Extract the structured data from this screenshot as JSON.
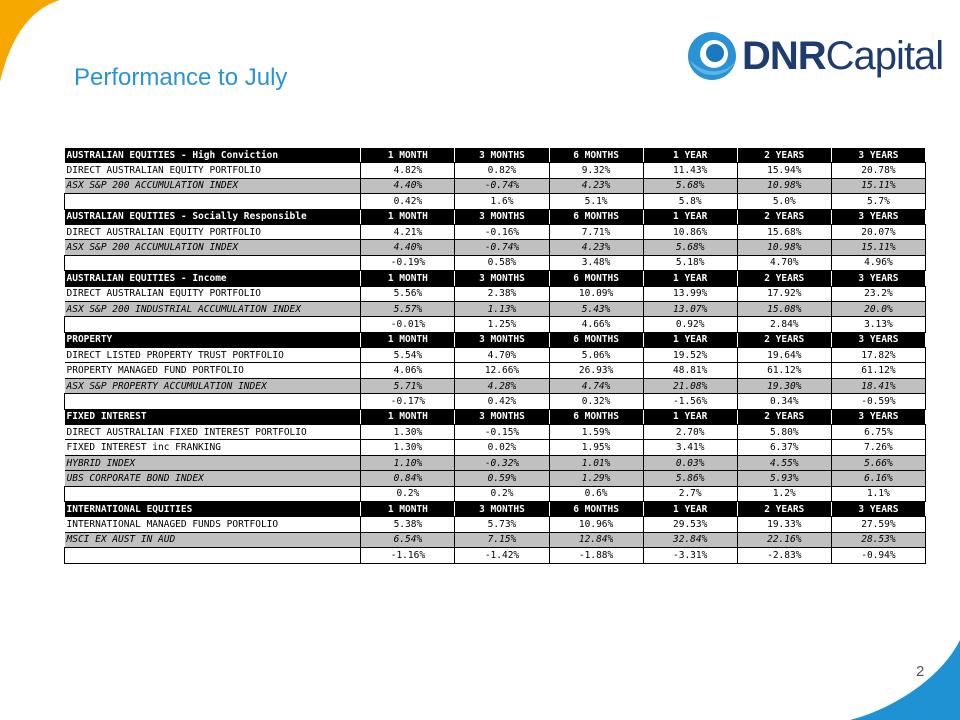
{
  "title": "Performance to July",
  "logo": {
    "bold": "DNR",
    "light": "Capital"
  },
  "page_number": "2",
  "colors": {
    "accent_blue": "#2a93d5",
    "logo_navy": "#1f3c70",
    "corner_yellow": "#f6a800",
    "header_bg": "#000000",
    "index_row_bg": "#c0c0c0"
  },
  "periods": [
    "1 MONTH",
    "3 MONTHS",
    "6 MONTHS",
    "1 YEAR",
    "2 YEARS",
    "3 YEARS"
  ],
  "sections": [
    {
      "name": "AUSTRALIAN EQUITIES - High Conviction",
      "rows": [
        {
          "type": "portfolio",
          "label": "DIRECT AUSTRALIAN EQUITY PORTFOLIO",
          "values": [
            "4.82%",
            "0.82%",
            "9.32%",
            "11.43%",
            "15.94%",
            "20.78%"
          ]
        },
        {
          "type": "index",
          "label": "ASX S&P 200 ACCUMULATION INDEX",
          "values": [
            "4.40%",
            "-0.74%",
            "4.23%",
            "5.68%",
            "10.98%",
            "15.11%"
          ]
        },
        {
          "type": "diff",
          "label": "",
          "values": [
            "0.42%",
            "1.6%",
            "5.1%",
            "5.8%",
            "5.0%",
            "5.7%"
          ]
        }
      ]
    },
    {
      "name": "AUSTRALIAN EQUITIES - Socially Responsible",
      "rows": [
        {
          "type": "portfolio",
          "label": "DIRECT AUSTRALIAN EQUITY PORTFOLIO",
          "values": [
            "4.21%",
            "-0.16%",
            "7.71%",
            "10.86%",
            "15.68%",
            "20.07%"
          ]
        },
        {
          "type": "index",
          "label": "ASX S&P 200 ACCUMULATION INDEX",
          "values": [
            "4.40%",
            "-0.74%",
            "4.23%",
            "5.68%",
            "10.98%",
            "15.11%"
          ]
        },
        {
          "type": "diff",
          "label": "",
          "values": [
            "-0.19%",
            "0.58%",
            "3.48%",
            "5.18%",
            "4.70%",
            "4.96%"
          ]
        }
      ]
    },
    {
      "name": "AUSTRALIAN EQUITIES - Income",
      "rows": [
        {
          "type": "portfolio",
          "label": "DIRECT AUSTRALIAN EQUITY PORTFOLIO",
          "values": [
            "5.56%",
            "2.38%",
            "10.09%",
            "13.99%",
            "17.92%",
            "23.2%"
          ]
        },
        {
          "type": "index",
          "label": "ASX S&P 200 INDUSTRIAL ACCUMULATION INDEX",
          "values": [
            "5.57%",
            "1.13%",
            "5.43%",
            "13.07%",
            "15.08%",
            "20.0%"
          ]
        },
        {
          "type": "diff",
          "label": "",
          "values": [
            "-0.01%",
            "1.25%",
            "4.66%",
            "0.92%",
            "2.84%",
            "3.13%"
          ]
        }
      ]
    },
    {
      "name": "PROPERTY",
      "rows": [
        {
          "type": "portfolio",
          "label": "DIRECT LISTED PROPERTY TRUST PORTFOLIO",
          "values": [
            "5.54%",
            "4.70%",
            "5.06%",
            "19.52%",
            "19.64%",
            "17.82%"
          ]
        },
        {
          "type": "portfolio",
          "label": "PROPERTY MANAGED FUND PORTFOLIO",
          "values": [
            "4.06%",
            "12.66%",
            "26.93%",
            "48.81%",
            "61.12%",
            "61.12%"
          ]
        },
        {
          "type": "index",
          "label": "ASX S&P PROPERTY ACCUMULATION INDEX",
          "values": [
            "5.71%",
            "4.28%",
            "4.74%",
            "21.08%",
            "19.30%",
            "18.41%"
          ]
        },
        {
          "type": "diff",
          "label": "",
          "values": [
            "-0.17%",
            "0.42%",
            "0.32%",
            "-1.56%",
            "0.34%",
            "-0.59%"
          ]
        }
      ]
    },
    {
      "name": "FIXED INTEREST",
      "rows": [
        {
          "type": "portfolio",
          "label": "DIRECT AUSTRALIAN FIXED INTEREST PORTFOLIO",
          "values": [
            "1.30%",
            "-0.15%",
            "1.59%",
            "2.70%",
            "5.80%",
            "6.75%"
          ]
        },
        {
          "type": "portfolio",
          "label": "FIXED INTEREST inc FRANKING",
          "values": [
            "1.30%",
            "0.02%",
            "1.95%",
            "3.41%",
            "6.37%",
            "7.26%"
          ]
        },
        {
          "type": "index",
          "label": "HYBRID INDEX",
          "values": [
            "1.10%",
            "-0.32%",
            "1.01%",
            "0.03%",
            "4.55%",
            "5.66%"
          ]
        },
        {
          "type": "index",
          "label": "UBS CORPORATE BOND INDEX",
          "values": [
            "0.84%",
            "0.59%",
            "1.29%",
            "5.86%",
            "5.93%",
            "6.16%"
          ]
        },
        {
          "type": "diff",
          "label": "",
          "values": [
            "0.2%",
            "0.2%",
            "0.6%",
            "2.7%",
            "1.2%",
            "1.1%"
          ]
        }
      ]
    },
    {
      "name": "INTERNATIONAL EQUITIES",
      "rows": [
        {
          "type": "portfolio",
          "label": "INTERNATIONAL MANAGED FUNDS PORTFOLIO",
          "values": [
            "5.38%",
            "5.73%",
            "10.96%",
            "29.53%",
            "19.33%",
            "27.59%"
          ]
        },
        {
          "type": "index",
          "label": "MSCI EX AUST IN AUD",
          "values": [
            "6.54%",
            "7.15%",
            "12.84%",
            "32.84%",
            "22.16%",
            "28.53%"
          ]
        },
        {
          "type": "diff",
          "label": "",
          "values": [
            "-1.16%",
            "-1.42%",
            "-1.88%",
            "-3.31%",
            "-2.83%",
            "-0.94%"
          ]
        }
      ]
    }
  ]
}
